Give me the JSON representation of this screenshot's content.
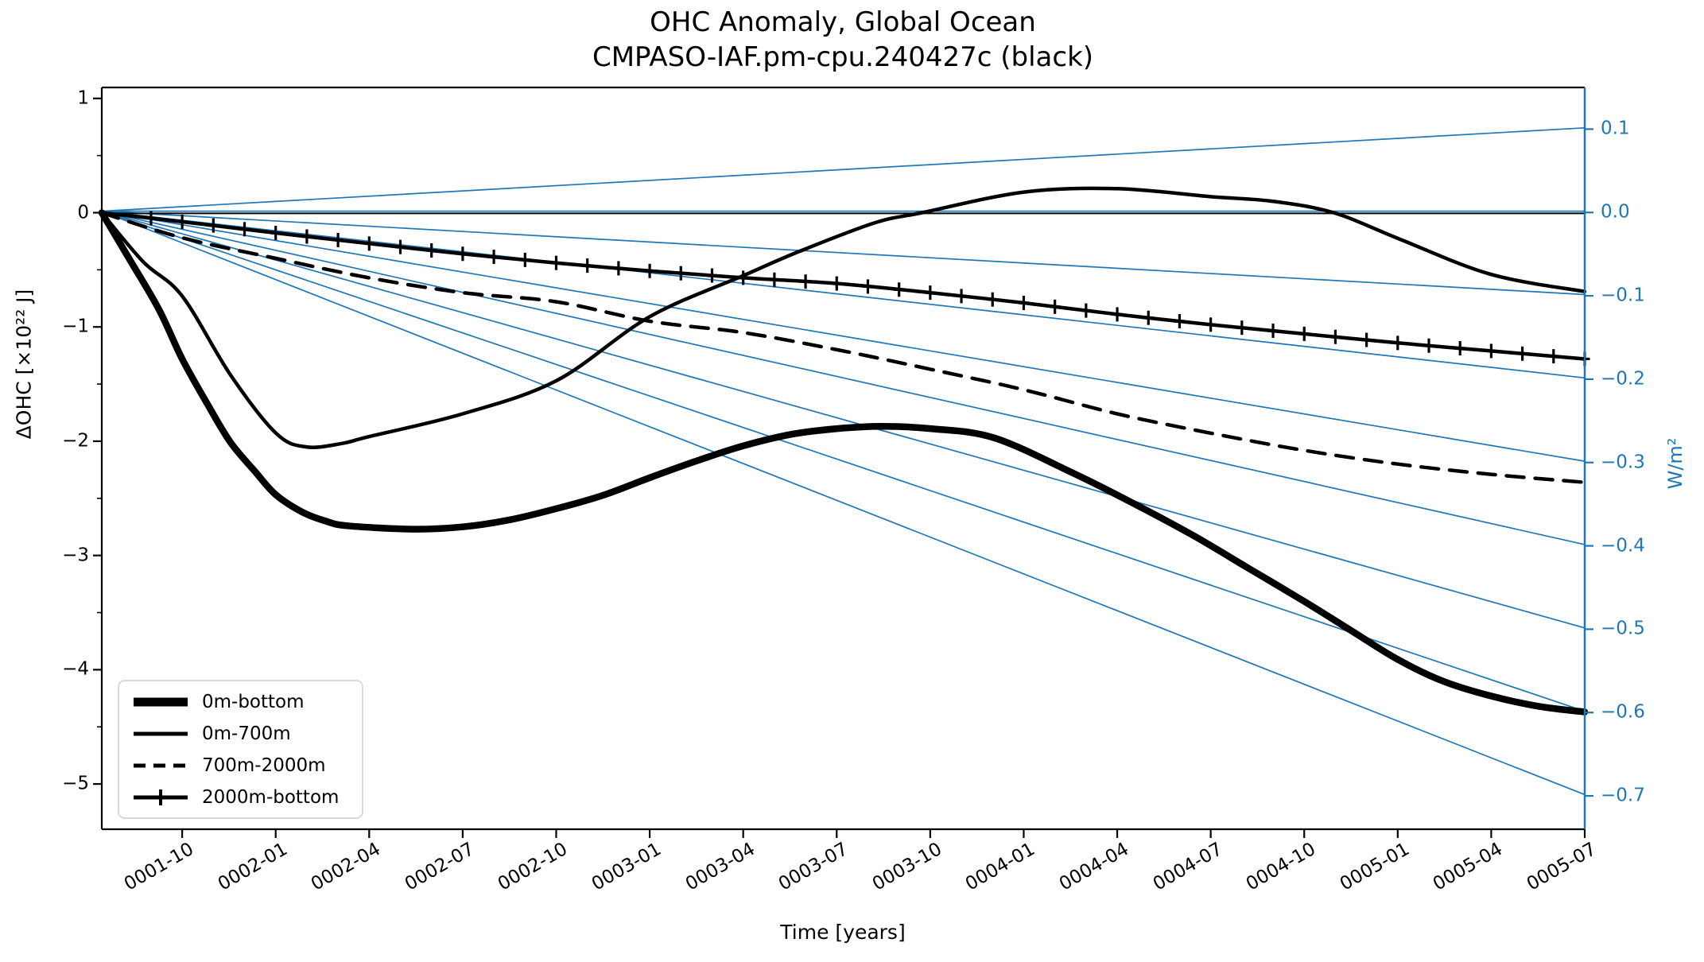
{
  "figure": {
    "title_line1": "OHC Anomaly, Global Ocean",
    "title_line2": "CMPASO-IAF.pm-cpu.240427c (black)",
    "xlabel": "Time [years]",
    "ylabel_left": "ΔOHC [×10²² J]",
    "ylabel_right": "W/m²",
    "colors": {
      "series_black": "#000000",
      "right_axis_blue": "#1f77b4",
      "legend_border": "#d9d9d9"
    }
  },
  "legend": {
    "items": [
      {
        "label": "0m-bottom",
        "style": "solid-thick"
      },
      {
        "label": "0m-700m",
        "style": "solid"
      },
      {
        "label": "700m-2000m",
        "style": "dashed"
      },
      {
        "label": "2000m-bottom",
        "style": "solid-plus"
      }
    ]
  },
  "chart_data": {
    "type": "line",
    "title": "OHC Anomaly, Global Ocean\nCMPASO-IAF.pm-cpu.240427c (black)",
    "xlabel": "Time [years]",
    "ylabel_left": "ΔOHC [×10²² J]",
    "ylabel_right": "W/m²",
    "grid": false,
    "legend_position": "lower left",
    "xlim_months": [
      0,
      47.58
    ],
    "ylim_left": [
      -5.396,
      1.096
    ],
    "ylim_right": [
      -0.74,
      0.15
    ],
    "x_tick_months": [
      2.58,
      5.58,
      8.58,
      11.58,
      14.58,
      17.58,
      20.58,
      23.58,
      26.58,
      29.58,
      32.58,
      35.58,
      38.58,
      41.58,
      44.58,
      47.58
    ],
    "x_tick_labels": [
      "0001-10",
      "0002-01",
      "0002-04",
      "0002-07",
      "0002-10",
      "0003-01",
      "0003-04",
      "0003-07",
      "0003-10",
      "0004-01",
      "0004-04",
      "0004-07",
      "0004-10",
      "0005-01",
      "0005-04",
      "0005-07"
    ],
    "ytick_left_values": [
      1,
      0,
      -1,
      -2,
      -3,
      -4,
      -5
    ],
    "ytick_left_labels": [
      "1",
      "0",
      "−1",
      "−2",
      "−3",
      "−4",
      "−5"
    ],
    "ytick_left_minor_values": [
      0.5,
      -0.5,
      -1.5,
      -2.5,
      -3.5,
      -4.5
    ],
    "ytick_right_values": [
      0.1,
      0.0,
      -0.1,
      -0.2,
      -0.3,
      -0.4,
      -0.5,
      -0.6,
      -0.7
    ],
    "ytick_right_labels": [
      "0.1",
      "0.0",
      "−0.1",
      "−0.2",
      "−0.3",
      "−0.4",
      "−0.5",
      "−0.6",
      "−0.7"
    ],
    "reference_lines_wm2": [
      0.1,
      0.0,
      -0.1,
      -0.2,
      -0.3,
      -0.4,
      -0.5,
      -0.6,
      -0.7
    ],
    "zero_line_left_axis": 0,
    "series": [
      {
        "name": "0m-bottom",
        "style": "solid-thick",
        "points": [
          [
            0,
            0
          ],
          [
            0.94,
            -0.43
          ],
          [
            1.84,
            -0.85
          ],
          [
            2.58,
            -1.28
          ],
          [
            3.42,
            -1.69
          ],
          [
            4.13,
            -2.01
          ],
          [
            4.9,
            -2.26
          ],
          [
            5.59,
            -2.47
          ],
          [
            6.43,
            -2.62
          ],
          [
            7.19,
            -2.7
          ],
          [
            7.88,
            -2.74
          ],
          [
            10,
            -2.77
          ],
          [
            11.58,
            -2.75
          ],
          [
            13.06,
            -2.69
          ],
          [
            14.59,
            -2.59
          ],
          [
            16.12,
            -2.47
          ],
          [
            17.58,
            -2.32
          ],
          [
            19.11,
            -2.17
          ],
          [
            20.59,
            -2.04
          ],
          [
            22.12,
            -1.94
          ],
          [
            23.6,
            -1.89
          ],
          [
            25.05,
            -1.87
          ],
          [
            26.58,
            -1.89
          ],
          [
            28.62,
            -1.97
          ],
          [
            31.17,
            -2.28
          ],
          [
            33.21,
            -2.56
          ],
          [
            35.05,
            -2.83
          ],
          [
            36.78,
            -3.11
          ],
          [
            38.57,
            -3.4
          ],
          [
            40.1,
            -3.66
          ],
          [
            41.58,
            -3.91
          ],
          [
            43.03,
            -4.1
          ],
          [
            44.57,
            -4.23
          ],
          [
            46.1,
            -4.32
          ],
          [
            47.58,
            -4.37
          ]
        ]
      },
      {
        "name": "0m-700m",
        "style": "solid",
        "points": [
          [
            0,
            0
          ],
          [
            1.33,
            -0.43
          ],
          [
            2.58,
            -0.73
          ],
          [
            4.13,
            -1.42
          ],
          [
            5.59,
            -1.93
          ],
          [
            6.56,
            -2.05
          ],
          [
            7.7,
            -2.02
          ],
          [
            8.57,
            -1.96
          ],
          [
            11.58,
            -1.76
          ],
          [
            14.59,
            -1.47
          ],
          [
            17.58,
            -0.91
          ],
          [
            20.59,
            -0.55
          ],
          [
            22.37,
            -0.34
          ],
          [
            24.79,
            -0.09
          ],
          [
            26.32,
            0
          ],
          [
            29.59,
            0.18
          ],
          [
            32.58,
            0.21
          ],
          [
            35.59,
            0.14
          ],
          [
            37.55,
            0.1
          ],
          [
            39.52,
            0
          ],
          [
            41.63,
            -0.23
          ],
          [
            44.57,
            -0.54
          ],
          [
            47.58,
            -0.69
          ]
        ]
      },
      {
        "name": "700m-2000m",
        "style": "dashed",
        "points": [
          [
            0,
            0
          ],
          [
            2.58,
            -0.22
          ],
          [
            5.59,
            -0.4
          ],
          [
            8.57,
            -0.57
          ],
          [
            11.58,
            -0.7
          ],
          [
            14.59,
            -0.78
          ],
          [
            17.58,
            -0.95
          ],
          [
            20.59,
            -1.05
          ],
          [
            23.6,
            -1.2
          ],
          [
            26.58,
            -1.37
          ],
          [
            29.59,
            -1.55
          ],
          [
            32.58,
            -1.76
          ],
          [
            35.59,
            -1.93
          ],
          [
            38.57,
            -2.08
          ],
          [
            41.58,
            -2.2
          ],
          [
            44.57,
            -2.29
          ],
          [
            47.58,
            -2.36
          ]
        ]
      },
      {
        "name": "2000m-bottom",
        "style": "solid-plus",
        "marker": "plus",
        "marker_interval_months": 1,
        "points": [
          [
            0,
            0
          ],
          [
            2.6,
            -0.08
          ],
          [
            5.66,
            -0.18
          ],
          [
            8.57,
            -0.27
          ],
          [
            11.58,
            -0.36
          ],
          [
            14.59,
            -0.44
          ],
          [
            17.58,
            -0.51
          ],
          [
            20.59,
            -0.57
          ],
          [
            23.6,
            -0.62
          ],
          [
            26.58,
            -0.7
          ],
          [
            29.59,
            -0.79
          ],
          [
            32.58,
            -0.89
          ],
          [
            35.59,
            -0.98
          ],
          [
            38.57,
            -1.06
          ],
          [
            41.58,
            -1.14
          ],
          [
            44.57,
            -1.21
          ],
          [
            47.58,
            -1.28
          ]
        ]
      }
    ]
  }
}
